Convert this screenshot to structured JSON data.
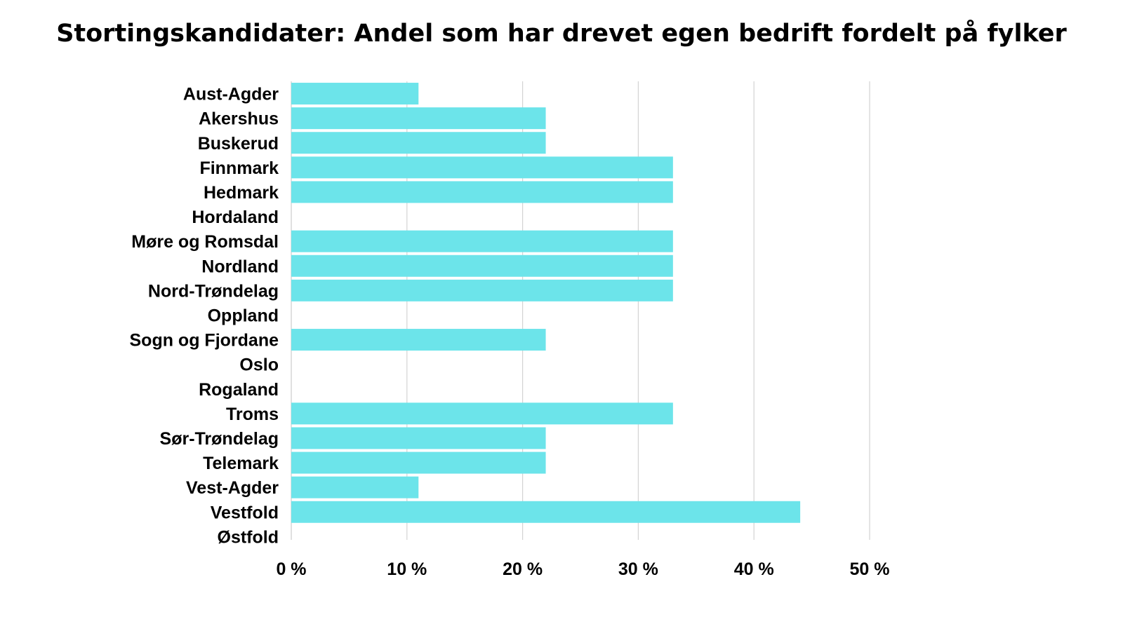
{
  "chart_data": {
    "type": "bar",
    "orientation": "horizontal",
    "title": "Stortingskandidater: Andel som har drevet egen bedrift fordelt på fylker",
    "xlabel": "",
    "ylabel": "",
    "categories": [
      "Aust-Agder",
      "Akershus",
      "Buskerud",
      "Finnmark",
      "Hedmark",
      "Hordaland",
      "Møre og Romsdal",
      "Nordland",
      "Nord-Trøndelag",
      "Oppland",
      "Sogn og Fjordane",
      "Oslo",
      "Rogaland",
      "Troms",
      "Sør-Trøndelag",
      "Telemark",
      "Vest-Agder",
      "Vestfold",
      "Østfold"
    ],
    "values": [
      11,
      22,
      22,
      33,
      33,
      0,
      33,
      33,
      33,
      0,
      22,
      0,
      0,
      33,
      22,
      22,
      11,
      44,
      0
    ],
    "xlim": [
      0,
      50
    ],
    "xticks": [
      0,
      10,
      20,
      30,
      40,
      50
    ],
    "xtick_labels": [
      "0 %",
      "10 %",
      "20 %",
      "30 %",
      "40 %",
      "50 %"
    ],
    "grid": "vertical",
    "legend": "none",
    "bar_color": "#6ce4ea",
    "grid_color": "#d3d3d3"
  }
}
